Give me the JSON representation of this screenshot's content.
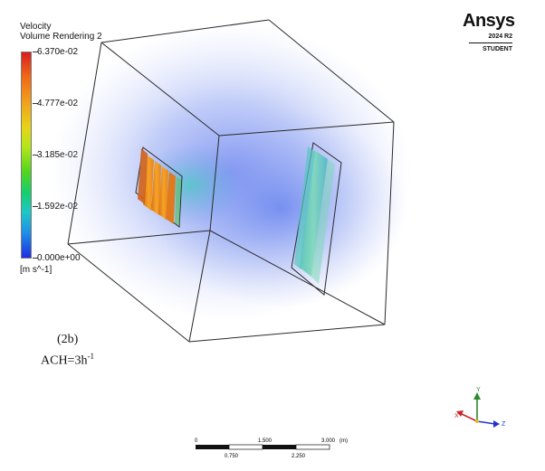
{
  "legend": {
    "title_line1": "Velocity",
    "title_line2": "Volume Rendering 2",
    "ticks": [
      "6.370e-02",
      "4.777e-02",
      "3.185e-02",
      "1.592e-02",
      "0.000e+00"
    ],
    "units": "[m s^-1]"
  },
  "brand": {
    "name": "Ansys",
    "version": "2024 R2",
    "edition": "STUDENT"
  },
  "caption": {
    "label": "(2b)",
    "ach_text": "ACH=3h",
    "ach_sup": "-1"
  },
  "scale_bar": {
    "labels_top": [
      "0",
      "1.500",
      "3.000"
    ],
    "unit": "(m)",
    "labels_bottom": [
      "0.750",
      "2.250"
    ]
  },
  "triad": {
    "y": "Y",
    "x": "X",
    "z": "Z"
  },
  "colors": {
    "cloud": "#6f86f0",
    "hot_inlet": "#f0791c",
    "outlet": "#6cd0b0",
    "triad_y": "#2b8a2b",
    "triad_x": "#c82828",
    "triad_z": "#2233cc"
  }
}
